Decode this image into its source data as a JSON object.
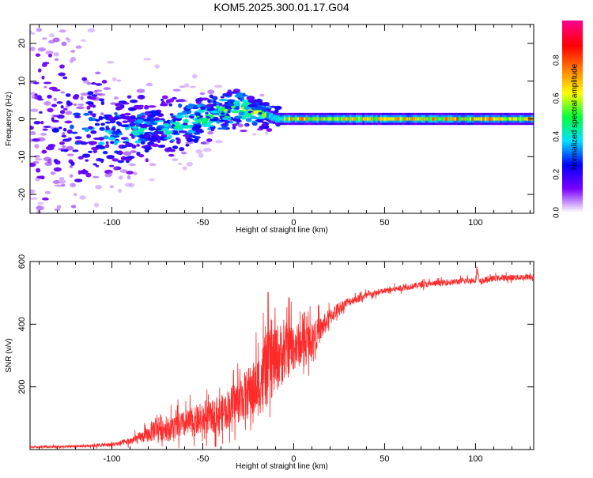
{
  "chart_data": [
    {
      "type": "heatmap",
      "title": "KOM5.2025.300.01.17.G04",
      "xlabel": "Height of straight line (km)",
      "ylabel": "Frequency (Hz)",
      "xlim": [
        -145,
        132
      ],
      "ylim": [
        -25,
        25
      ],
      "xticks": [
        -100,
        -50,
        0,
        50,
        100
      ],
      "yticks": [
        -20,
        -10,
        0,
        10,
        20
      ],
      "colorbar": {
        "label": "Normalized spectral amplitude",
        "range": [
          0,
          1
        ],
        "ticks": [
          0.0,
          0.2,
          0.4,
          0.6,
          0.8
        ],
        "colormap": [
          "#ffffff",
          "#7a00ff",
          "#0000ff",
          "#00e0ff",
          "#00ff40",
          "#ffff00",
          "#ff7f00",
          "#ff0000",
          "#ff0088"
        ]
      },
      "ridge": [
        {
          "x": -145,
          "center": 0,
          "spread": 20,
          "amplitude": 0.1
        },
        {
          "x": -120,
          "center": -3,
          "spread": 12,
          "amplitude": 0.18
        },
        {
          "x": -100,
          "center": -4,
          "spread": 6,
          "amplitude": 0.25
        },
        {
          "x": -80,
          "center": -3,
          "spread": 5,
          "amplitude": 0.26
        },
        {
          "x": -60,
          "center": -1,
          "spread": 4,
          "amplitude": 0.28
        },
        {
          "x": -45,
          "center": 1,
          "spread": 3,
          "amplitude": 0.32
        },
        {
          "x": -30,
          "center": 3,
          "spread": 2.5,
          "amplitude": 0.36
        },
        {
          "x": -20,
          "center": 2,
          "spread": 2,
          "amplitude": 0.36
        },
        {
          "x": -10,
          "center": 0,
          "spread": 1.2,
          "amplitude": 0.42
        },
        {
          "x": 0,
          "center": 0,
          "spread": 0.9,
          "amplitude": 0.62
        },
        {
          "x": 20,
          "center": 0,
          "spread": 0.8,
          "amplitude": 0.55
        },
        {
          "x": 50,
          "center": 0,
          "spread": 0.8,
          "amplitude": 0.6
        },
        {
          "x": 100,
          "center": 0,
          "spread": 0.8,
          "amplitude": 0.62
        },
        {
          "x": 132,
          "center": 0,
          "spread": 0.8,
          "amplitude": 0.6
        }
      ]
    },
    {
      "type": "line",
      "xlabel": "Height of straight line (km)",
      "ylabel": "SNR (v/v)",
      "xlim": [
        -145,
        132
      ],
      "ylim": [
        0,
        600
      ],
      "xticks": [
        -100,
        -50,
        0,
        50,
        100
      ],
      "yticks": [
        200,
        400,
        600
      ],
      "line_color": "#ff2a2a",
      "series": [
        {
          "name": "SNR",
          "x": [
            -145,
            -120,
            -100,
            -90,
            -80,
            -75,
            -70,
            -60,
            -50,
            -40,
            -30,
            -20,
            -15,
            -10,
            -5,
            0,
            5,
            10,
            15,
            20,
            25,
            30,
            40,
            50,
            60,
            70,
            80,
            90,
            100,
            101,
            102,
            110,
            120,
            132
          ],
          "values": [
            8,
            10,
            15,
            25,
            45,
            70,
            60,
            75,
            90,
            110,
            150,
            190,
            240,
            280,
            300,
            320,
            330,
            345,
            380,
            420,
            450,
            470,
            490,
            505,
            515,
            525,
            530,
            535,
            540,
            570,
            535,
            545,
            548,
            550
          ],
          "noise": [
            4,
            5,
            8,
            14,
            30,
            60,
            45,
            55,
            60,
            70,
            90,
            120,
            150,
            140,
            120,
            100,
            80,
            70,
            50,
            35,
            25,
            18,
            14,
            12,
            12,
            12,
            12,
            12,
            12,
            20,
            12,
            12,
            12,
            12
          ]
        }
      ]
    }
  ]
}
